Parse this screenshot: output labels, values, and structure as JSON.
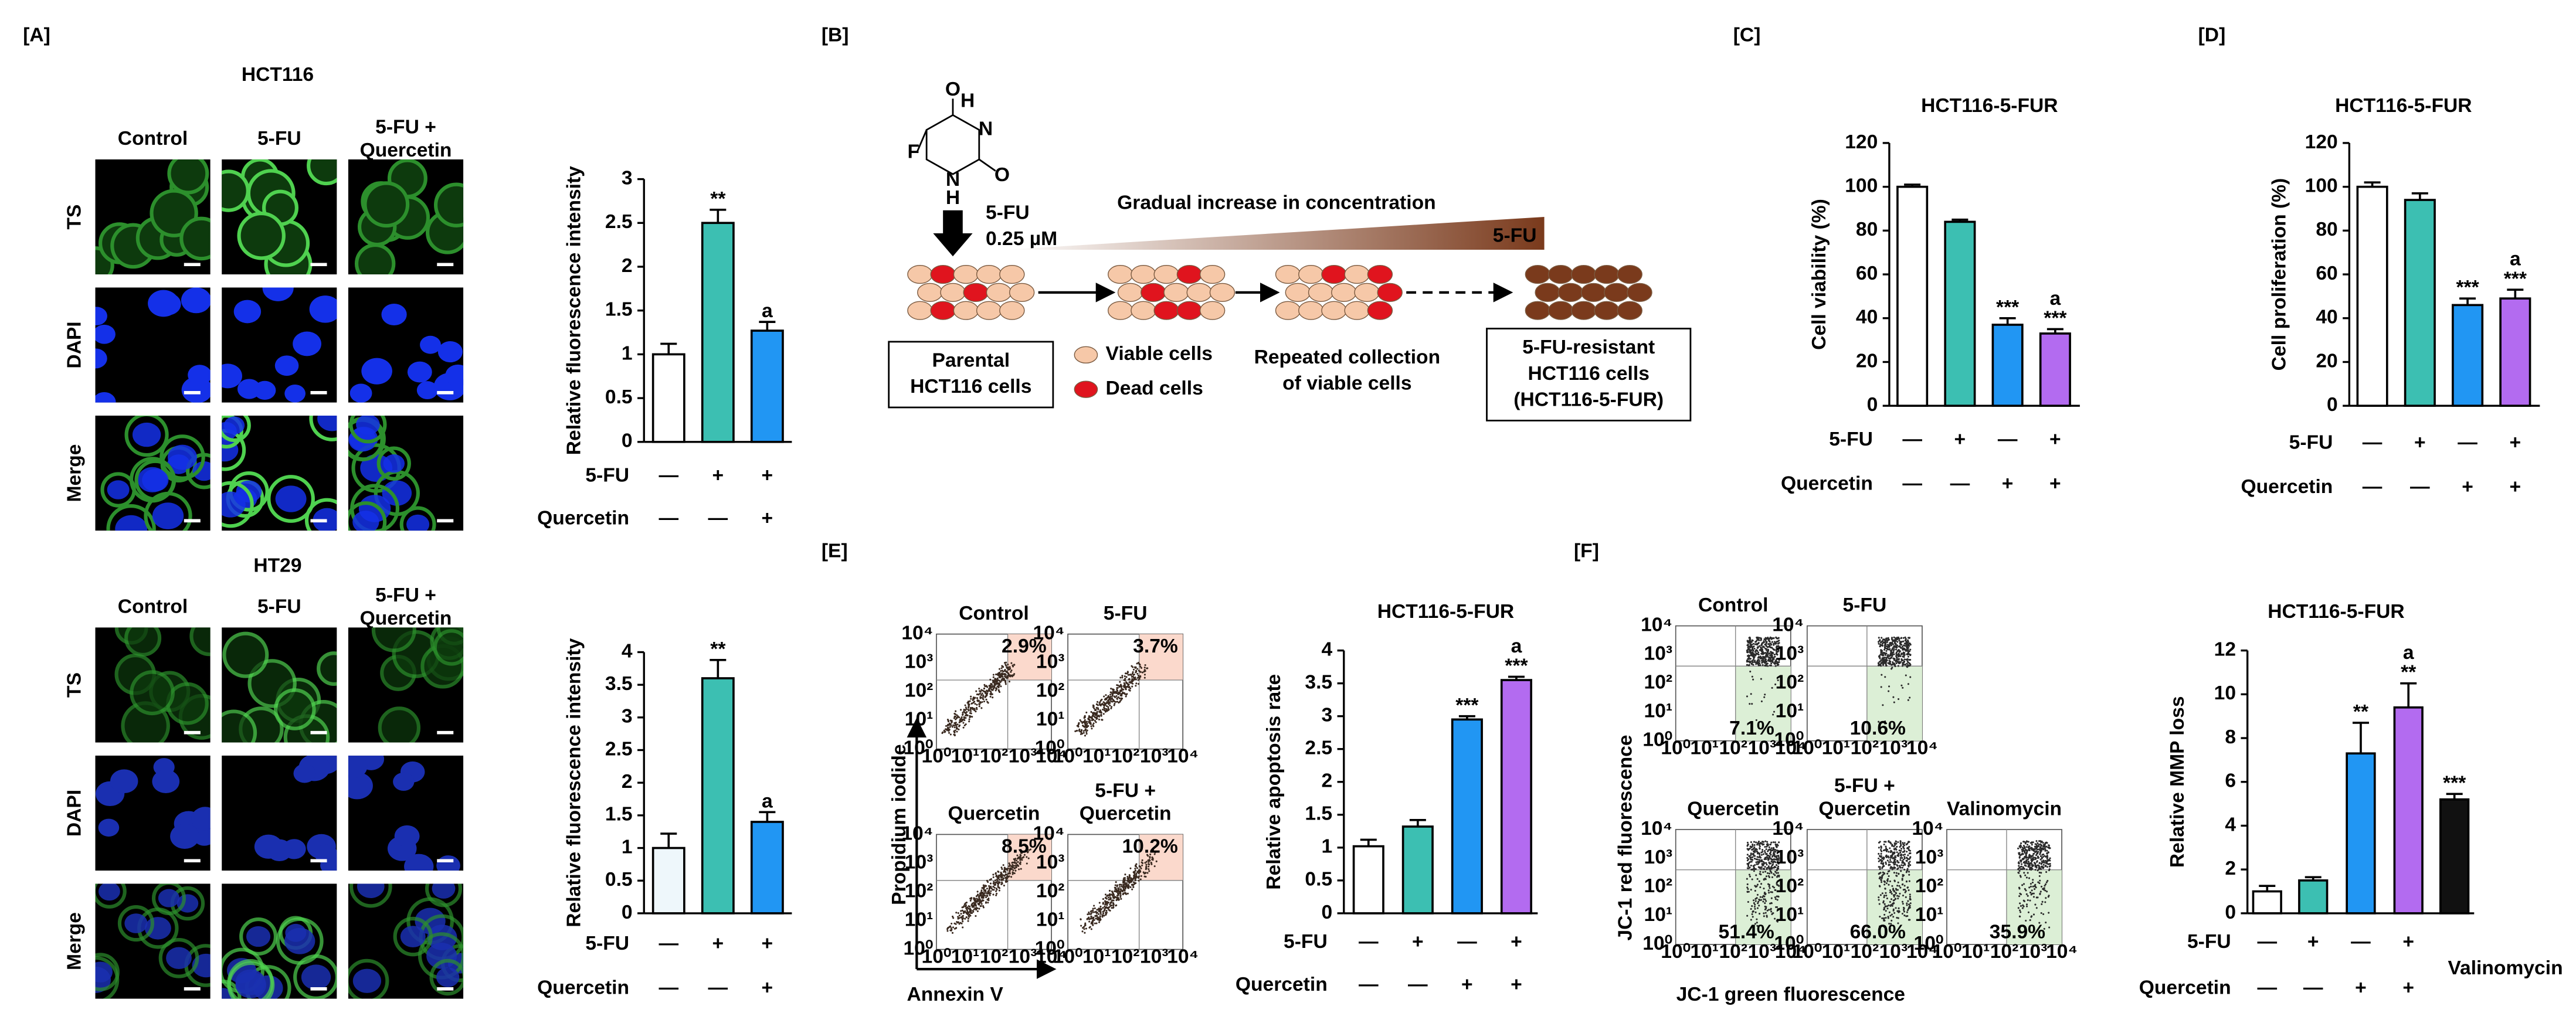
{
  "panel_labels": [
    "[A]",
    "[B]",
    "[C]",
    "[D]",
    "[E]",
    "[F]"
  ],
  "panel_a": {
    "rows": [
      "TS",
      "DAPI",
      "Merge"
    ],
    "blocks": [
      {
        "title": "HCT116",
        "columns": [
          [
            "Control"
          ],
          [
            "5-FU"
          ],
          [
            "5-FU +",
            "Quercetin"
          ]
        ]
      },
      {
        "title": "HT29",
        "columns": [
          [
            "Control"
          ],
          [
            "5-FU"
          ],
          [
            "5-FU +",
            "Quercetin"
          ]
        ]
      }
    ]
  },
  "panel_b": {
    "atoms": [
      "F",
      "O",
      "O",
      "H",
      "N",
      "N",
      "H"
    ],
    "drug": "5-FU",
    "dose": "0.25 µM",
    "gradient_label": "Gradual increase in concentration",
    "gradient_drug": "5-FU",
    "parental": [
      "Parental",
      "HCT116 cells"
    ],
    "legend": [
      "Viable cells",
      "Dead cells"
    ],
    "repeated": [
      "Repeated collection",
      "of viable cells"
    ],
    "resistant": [
      "5-FU-resistant",
      "HCT116 cells",
      "(HCT116-5-FUR)"
    ]
  },
  "panel_e": {
    "y_label": "Propidium iodide",
    "x_label": "Annexin V",
    "log_ticks": [
      "10⁰",
      "10¹",
      "10²",
      "10³",
      "10⁴"
    ],
    "plots": [
      {
        "title": [
          "Control"
        ],
        "percent": "2.9%"
      },
      {
        "title": [
          "5-FU"
        ],
        "percent": "3.7%"
      },
      {
        "title": [
          "Quercetin"
        ],
        "percent": "8.5%"
      },
      {
        "title": [
          "5-FU +",
          "Quercetin"
        ],
        "percent": "10.2%"
      }
    ]
  },
  "panel_f": {
    "y_label": "JC-1 red fluorescence",
    "x_label": "JC-1 green fluorescence",
    "log_ticks": [
      "10⁰",
      "10¹",
      "10²",
      "10³",
      "10⁴"
    ],
    "plots": [
      {
        "title": [
          "Control"
        ],
        "percent": "7.1%"
      },
      {
        "title": [
          "5-FU"
        ],
        "percent": "10.6%"
      },
      {
        "title": [
          "Quercetin"
        ],
        "percent": "51.4%"
      },
      {
        "title": [
          "5-FU +",
          "Quercetin"
        ],
        "percent": "66.0%"
      },
      {
        "title": [
          "Valinomycin"
        ],
        "percent": "35.9%"
      }
    ]
  },
  "chart_data": [
    {
      "type": "bar",
      "y_label": "Relative fluorescence intensity",
      "values": [
        1,
        2.5,
        1.27
      ],
      "errors": [
        0.12,
        0.15,
        0.1
      ],
      "colors": [
        "#ffffff",
        "#3cbfb2",
        "#2196f3"
      ],
      "ylim": [
        0,
        3
      ],
      "yticks": [
        0,
        0.5,
        1,
        1.5,
        2,
        2.5,
        3
      ],
      "annotations": [
        {
          "index": 1,
          "lines": [
            "**"
          ]
        },
        {
          "index": 2,
          "lines": [
            "a"
          ]
        }
      ],
      "treatments": [
        {
          "name": "5-FU",
          "signs": [
            "—",
            "+",
            "+"
          ]
        },
        {
          "name": "Quercetin",
          "signs": [
            "—",
            "—",
            "+"
          ]
        }
      ]
    },
    {
      "type": "bar",
      "y_label": "Relative fluorescence intensity",
      "values": [
        1,
        3.6,
        1.4
      ],
      "errors": [
        0.22,
        0.28,
        0.15
      ],
      "colors": [
        "#eef7fb",
        "#3cbfb2",
        "#2196f3"
      ],
      "ylim": [
        0,
        4
      ],
      "yticks": [
        0,
        0.5,
        1,
        1.5,
        2,
        2.5,
        3,
        3.5,
        4
      ],
      "annotations": [
        {
          "index": 1,
          "lines": [
            "**"
          ]
        },
        {
          "index": 2,
          "lines": [
            "a"
          ]
        }
      ],
      "treatments": [
        {
          "name": "5-FU",
          "signs": [
            "—",
            "+",
            "+"
          ]
        },
        {
          "name": "Quercetin",
          "signs": [
            "—",
            "—",
            "+"
          ]
        }
      ]
    },
    {
      "type": "bar",
      "title": "HCT116-5-FUR",
      "y_label": "Cell viability (%)",
      "values": [
        100,
        84,
        37,
        33
      ],
      "errors": [
        1,
        1,
        3,
        2
      ],
      "colors": [
        "#ffffff",
        "#3cbfb2",
        "#2196f3",
        "#b36bf0"
      ],
      "ylim": [
        0,
        120
      ],
      "yticks": [
        0,
        20,
        40,
        60,
        80,
        100,
        120
      ],
      "annotations": [
        {
          "index": 2,
          "lines": [
            "***"
          ]
        },
        {
          "index": 3,
          "lines": [
            "a",
            "***"
          ]
        }
      ],
      "treatments": [
        {
          "name": "5-FU",
          "signs": [
            "—",
            "+",
            "—",
            "+"
          ]
        },
        {
          "name": "Quercetin",
          "signs": [
            "—",
            "—",
            "+",
            "+"
          ]
        }
      ]
    },
    {
      "type": "bar",
      "title": "HCT116-5-FUR",
      "y_label": "Cell proliferation (%)",
      "values": [
        100,
        94,
        46,
        49
      ],
      "errors": [
        2,
        3,
        3,
        4
      ],
      "colors": [
        "#ffffff",
        "#3cbfb2",
        "#2196f3",
        "#b36bf0"
      ],
      "ylim": [
        0,
        120
      ],
      "yticks": [
        0,
        20,
        40,
        60,
        80,
        100,
        120
      ],
      "annotations": [
        {
          "index": 2,
          "lines": [
            "***"
          ]
        },
        {
          "index": 3,
          "lines": [
            "a",
            "***"
          ]
        }
      ],
      "treatments": [
        {
          "name": "5-FU",
          "signs": [
            "—",
            "+",
            "—",
            "+"
          ]
        },
        {
          "name": "Quercetin",
          "signs": [
            "—",
            "—",
            "+",
            "+"
          ]
        }
      ]
    },
    {
      "type": "bar",
      "title": "HCT116-5-FUR",
      "y_label": "Relative apoptosis rate",
      "values": [
        1.02,
        1.32,
        2.95,
        3.55
      ],
      "errors": [
        0.1,
        0.1,
        0.05,
        0.05
      ],
      "colors": [
        "#ffffff",
        "#3cbfb2",
        "#2196f3",
        "#b36bf0"
      ],
      "ylim": [
        0,
        4
      ],
      "yticks": [
        0,
        0.5,
        1,
        1.5,
        2,
        2.5,
        3,
        3.5,
        4
      ],
      "annotations": [
        {
          "index": 2,
          "lines": [
            "***"
          ]
        },
        {
          "index": 3,
          "lines": [
            "a",
            "***"
          ]
        }
      ],
      "treatments": [
        {
          "name": "5-FU",
          "signs": [
            "—",
            "+",
            "—",
            "+"
          ]
        },
        {
          "name": "Quercetin",
          "signs": [
            "—",
            "—",
            "+",
            "+"
          ]
        }
      ]
    },
    {
      "type": "bar",
      "title": "HCT116-5-FUR",
      "y_label": "Relative MMP loss",
      "values": [
        1.0,
        1.5,
        7.3,
        9.4,
        5.2
      ],
      "errors": [
        0.25,
        0.15,
        1.4,
        1.1,
        0.25
      ],
      "colors": [
        "#ffffff",
        "#3cbfb2",
        "#2196f3",
        "#b36bf0",
        "#111111"
      ],
      "ylim": [
        0,
        12
      ],
      "yticks": [
        0,
        2,
        4,
        6,
        8,
        10,
        12
      ],
      "annotations": [
        {
          "index": 2,
          "lines": [
            "**"
          ]
        },
        {
          "index": 3,
          "lines": [
            "a",
            "**"
          ]
        },
        {
          "index": 4,
          "lines": [
            "***"
          ]
        }
      ],
      "treatments": [
        {
          "name": "5-FU",
          "signs": [
            "—",
            "+",
            "—",
            "+"
          ]
        },
        {
          "name": "Quercetin",
          "signs": [
            "—",
            "—",
            "+",
            "+"
          ]
        }
      ],
      "extra_label": "Valinomycin"
    }
  ]
}
